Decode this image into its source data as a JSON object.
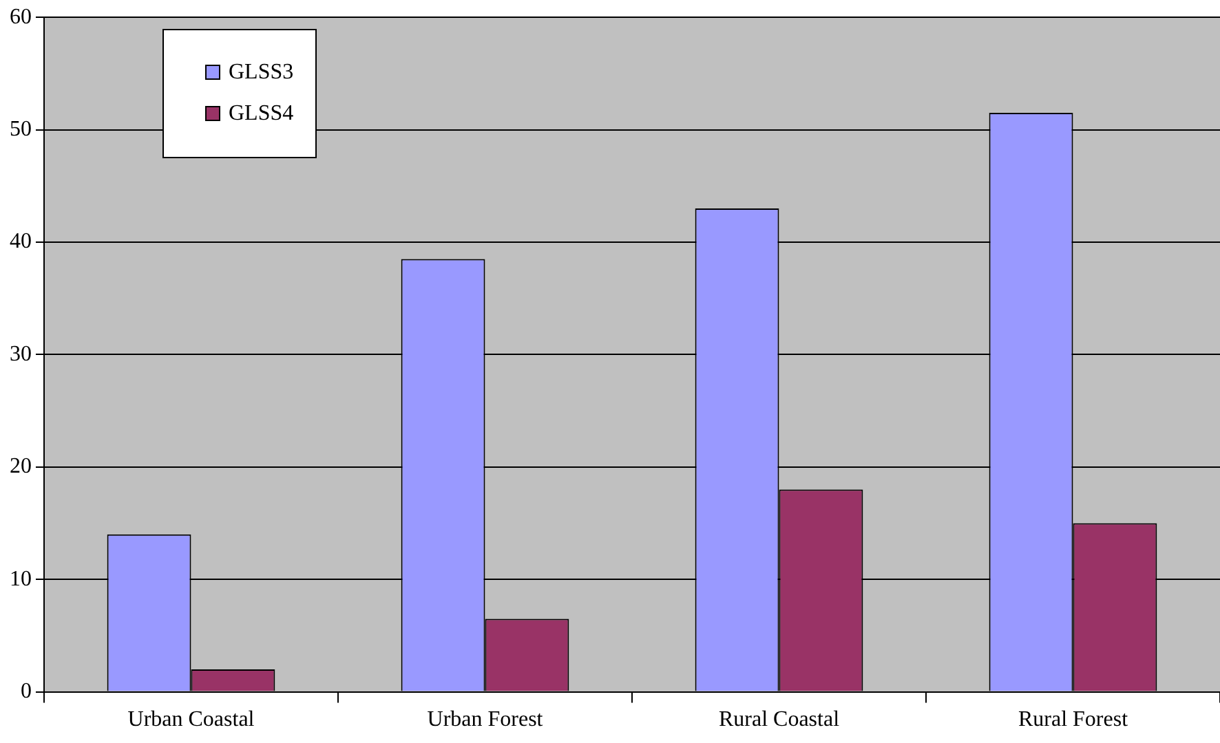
{
  "chart_data": {
    "type": "bar",
    "categories": [
      "Urban Coastal",
      "Urban Forest",
      "Rural Coastal",
      "Rural Forest"
    ],
    "series": [
      {
        "name": "GLSS3",
        "color": "#9999ff",
        "values": [
          14,
          38.5,
          43,
          51.5
        ]
      },
      {
        "name": "GLSS4",
        "color": "#993366",
        "values": [
          2,
          6.5,
          18,
          15
        ]
      }
    ],
    "ylim": [
      0,
      60
    ],
    "yticks": [
      0,
      10,
      20,
      30,
      40,
      50,
      60
    ],
    "grid": "y",
    "legend": "top left"
  }
}
